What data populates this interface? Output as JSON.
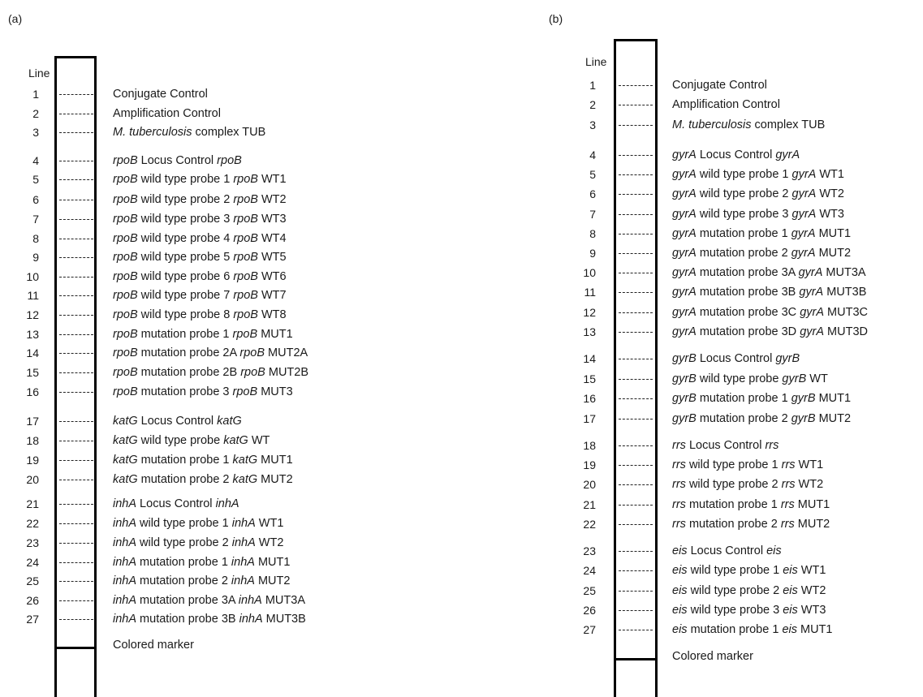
{
  "panels": [
    {
      "id": "a",
      "label": "(a)",
      "line_header": "Line",
      "marker_label": "Colored marker",
      "lines": [
        {
          "n": "1",
          "text": [
            [
              "Conjugate Control",
              0
            ]
          ]
        },
        {
          "n": "2",
          "text": [
            [
              "Amplification Control",
              0
            ]
          ]
        },
        {
          "n": "3",
          "text": [
            [
              "M. tuberculosis",
              1
            ],
            [
              " complex TUB",
              0
            ]
          ]
        },
        {
          "n": "4",
          "text": [
            [
              "rpoB",
              1
            ],
            [
              " Locus Control ",
              0
            ],
            [
              "rpoB",
              1
            ]
          ]
        },
        {
          "n": "5",
          "text": [
            [
              "rpoB",
              1
            ],
            [
              " wild type probe 1 ",
              0
            ],
            [
              "rpoB",
              1
            ],
            [
              " WT1",
              0
            ]
          ]
        },
        {
          "n": "6",
          "text": [
            [
              "rpoB",
              1
            ],
            [
              " wild type probe 2 ",
              0
            ],
            [
              "rpoB",
              1
            ],
            [
              " WT2",
              0
            ]
          ]
        },
        {
          "n": "7",
          "text": [
            [
              "rpoB",
              1
            ],
            [
              " wild type probe 3 ",
              0
            ],
            [
              "rpoB",
              1
            ],
            [
              " WT3",
              0
            ]
          ]
        },
        {
          "n": "8",
          "text": [
            [
              "rpoB",
              1
            ],
            [
              " wild type probe 4 ",
              0
            ],
            [
              "rpoB",
              1
            ],
            [
              " WT4",
              0
            ]
          ]
        },
        {
          "n": "9",
          "text": [
            [
              "rpoB",
              1
            ],
            [
              " wild type probe 5 ",
              0
            ],
            [
              "rpoB",
              1
            ],
            [
              " WT5",
              0
            ]
          ]
        },
        {
          "n": "10",
          "text": [
            [
              "rpoB",
              1
            ],
            [
              " wild type probe 6 ",
              0
            ],
            [
              "rpoB",
              1
            ],
            [
              " WT6",
              0
            ]
          ]
        },
        {
          "n": "11",
          "text": [
            [
              "rpoB",
              1
            ],
            [
              " wild type probe 7 ",
              0
            ],
            [
              "rpoB",
              1
            ],
            [
              " WT7",
              0
            ]
          ]
        },
        {
          "n": "12",
          "text": [
            [
              "rpoB",
              1
            ],
            [
              " wild type probe 8 ",
              0
            ],
            [
              "rpoB",
              1
            ],
            [
              " WT8",
              0
            ]
          ]
        },
        {
          "n": "13",
          "text": [
            [
              "rpoB",
              1
            ],
            [
              " mutation probe 1 ",
              0
            ],
            [
              "rpoB",
              1
            ],
            [
              " MUT1",
              0
            ]
          ]
        },
        {
          "n": "14",
          "text": [
            [
              "rpoB",
              1
            ],
            [
              " mutation probe 2A ",
              0
            ],
            [
              "rpoB",
              1
            ],
            [
              " MUT2A",
              0
            ]
          ]
        },
        {
          "n": "15",
          "text": [
            [
              "rpoB",
              1
            ],
            [
              " mutation probe 2B ",
              0
            ],
            [
              "rpoB",
              1
            ],
            [
              " MUT2B",
              0
            ]
          ]
        },
        {
          "n": "16",
          "text": [
            [
              "rpoB",
              1
            ],
            [
              " mutation probe 3 ",
              0
            ],
            [
              "rpoB",
              1
            ],
            [
              " MUT3",
              0
            ]
          ]
        },
        {
          "n": "17",
          "text": [
            [
              "katG",
              1
            ],
            [
              " Locus Control ",
              0
            ],
            [
              "katG",
              1
            ]
          ]
        },
        {
          "n": "18",
          "text": [
            [
              "katG",
              1
            ],
            [
              " wild type probe ",
              0
            ],
            [
              "katG",
              1
            ],
            [
              " WT",
              0
            ]
          ]
        },
        {
          "n": "19",
          "text": [
            [
              "katG",
              1
            ],
            [
              " mutation probe 1 ",
              0
            ],
            [
              "katG",
              1
            ],
            [
              " MUT1",
              0
            ]
          ]
        },
        {
          "n": "20",
          "text": [
            [
              "katG",
              1
            ],
            [
              " mutation probe 2 ",
              0
            ],
            [
              "katG",
              1
            ],
            [
              " MUT2",
              0
            ]
          ]
        },
        {
          "n": "21",
          "text": [
            [
              "inhA",
              1
            ],
            [
              " Locus Control ",
              0
            ],
            [
              "inhA",
              1
            ]
          ]
        },
        {
          "n": "22",
          "text": [
            [
              "inhA",
              1
            ],
            [
              " wild type probe 1 ",
              0
            ],
            [
              "inhA",
              1
            ],
            [
              " WT1",
              0
            ]
          ]
        },
        {
          "n": "23",
          "text": [
            [
              "inhA",
              1
            ],
            [
              " wild type probe 2 ",
              0
            ],
            [
              "inhA",
              1
            ],
            [
              " WT2",
              0
            ]
          ]
        },
        {
          "n": "24",
          "text": [
            [
              "inhA",
              1
            ],
            [
              " mutation probe 1 ",
              0
            ],
            [
              "inhA",
              1
            ],
            [
              " MUT1",
              0
            ]
          ]
        },
        {
          "n": "25",
          "text": [
            [
              "inhA",
              1
            ],
            [
              " mutation probe 2 ",
              0
            ],
            [
              "inhA",
              1
            ],
            [
              " MUT2",
              0
            ]
          ]
        },
        {
          "n": "26",
          "text": [
            [
              "inhA",
              1
            ],
            [
              " mutation probe 3A ",
              0
            ],
            [
              "inhA",
              1
            ],
            [
              " MUT3A",
              0
            ]
          ]
        },
        {
          "n": "27",
          "text": [
            [
              "inhA",
              1
            ],
            [
              " mutation probe 3B ",
              0
            ],
            [
              "inhA",
              1
            ],
            [
              " MUT3B",
              0
            ]
          ]
        }
      ]
    },
    {
      "id": "b",
      "label": "(b)",
      "line_header": "Line",
      "marker_label": "Colored marker",
      "lines": [
        {
          "n": "1",
          "text": [
            [
              "Conjugate Control",
              0
            ]
          ]
        },
        {
          "n": "2",
          "text": [
            [
              "Amplification Control",
              0
            ]
          ]
        },
        {
          "n": "3",
          "text": [
            [
              "M. tuberculosis",
              1
            ],
            [
              " complex TUB",
              0
            ]
          ]
        },
        {
          "n": "4",
          "text": [
            [
              "gyrA",
              1
            ],
            [
              " Locus Control ",
              0
            ],
            [
              "gyrA",
              1
            ]
          ]
        },
        {
          "n": "5",
          "text": [
            [
              "gyrA",
              1
            ],
            [
              " wild type probe 1 ",
              0
            ],
            [
              "gyrA",
              1
            ],
            [
              " WT1",
              0
            ]
          ]
        },
        {
          "n": "6",
          "text": [
            [
              "gyrA",
              1
            ],
            [
              " wild type probe 2 ",
              0
            ],
            [
              "gyrA",
              1
            ],
            [
              " WT2",
              0
            ]
          ]
        },
        {
          "n": "7",
          "text": [
            [
              "gyrA",
              1
            ],
            [
              " wild type probe 3 ",
              0
            ],
            [
              "gyrA",
              1
            ],
            [
              " WT3",
              0
            ]
          ]
        },
        {
          "n": "8",
          "text": [
            [
              "gyrA",
              1
            ],
            [
              " mutation probe 1 ",
              0
            ],
            [
              "gyrA",
              1
            ],
            [
              " MUT1",
              0
            ]
          ]
        },
        {
          "n": "9",
          "text": [
            [
              "gyrA",
              1
            ],
            [
              " mutation probe 2 ",
              0
            ],
            [
              "gyrA",
              1
            ],
            [
              " MUT2",
              0
            ]
          ]
        },
        {
          "n": "10",
          "text": [
            [
              "gyrA",
              1
            ],
            [
              " mutation probe 3A ",
              0
            ],
            [
              "gyrA",
              1
            ],
            [
              " MUT3A",
              0
            ]
          ]
        },
        {
          "n": "11",
          "text": [
            [
              "gyrA",
              1
            ],
            [
              " mutation probe 3B ",
              0
            ],
            [
              "gyrA",
              1
            ],
            [
              " MUT3B",
              0
            ]
          ]
        },
        {
          "n": "12",
          "text": [
            [
              "gyrA",
              1
            ],
            [
              " mutation probe 3C ",
              0
            ],
            [
              "gyrA",
              1
            ],
            [
              " MUT3C",
              0
            ]
          ]
        },
        {
          "n": "13",
          "text": [
            [
              "gyrA",
              1
            ],
            [
              " mutation probe 3D ",
              0
            ],
            [
              "gyrA",
              1
            ],
            [
              " MUT3D",
              0
            ]
          ]
        },
        {
          "n": "14",
          "text": [
            [
              "gyrB",
              1
            ],
            [
              " Locus Control ",
              0
            ],
            [
              "gyrB",
              1
            ]
          ]
        },
        {
          "n": "15",
          "text": [
            [
              "gyrB",
              1
            ],
            [
              " wild type probe ",
              0
            ],
            [
              "gyrB",
              1
            ],
            [
              " WT",
              0
            ]
          ]
        },
        {
          "n": "16",
          "text": [
            [
              "gyrB",
              1
            ],
            [
              " mutation probe 1 ",
              0
            ],
            [
              "gyrB",
              1
            ],
            [
              " MUT1",
              0
            ]
          ]
        },
        {
          "n": "17",
          "text": [
            [
              "gyrB",
              1
            ],
            [
              " mutation probe 2 ",
              0
            ],
            [
              "gyrB",
              1
            ],
            [
              " MUT2",
              0
            ]
          ]
        },
        {
          "n": "18",
          "text": [
            [
              "rrs",
              1
            ],
            [
              " Locus Control ",
              0
            ],
            [
              "rrs",
              1
            ]
          ]
        },
        {
          "n": "19",
          "text": [
            [
              "rrs",
              1
            ],
            [
              " wild type probe 1 ",
              0
            ],
            [
              "rrs",
              1
            ],
            [
              " WT1",
              0
            ]
          ]
        },
        {
          "n": "20",
          "text": [
            [
              "rrs",
              1
            ],
            [
              " wild type probe 2 ",
              0
            ],
            [
              "rrs",
              1
            ],
            [
              " WT2",
              0
            ]
          ]
        },
        {
          "n": "21",
          "text": [
            [
              "rrs",
              1
            ],
            [
              " mutation probe 1 ",
              0
            ],
            [
              "rrs",
              1
            ],
            [
              " MUT1",
              0
            ]
          ]
        },
        {
          "n": "22",
          "text": [
            [
              "rrs",
              1
            ],
            [
              " mutation probe 2 ",
              0
            ],
            [
              "rrs",
              1
            ],
            [
              " MUT2",
              0
            ]
          ]
        },
        {
          "n": "23",
          "text": [
            [
              "eis",
              1
            ],
            [
              " Locus Control ",
              0
            ],
            [
              "eis",
              1
            ]
          ]
        },
        {
          "n": "24",
          "text": [
            [
              "eis",
              1
            ],
            [
              " wild type probe 1 ",
              0
            ],
            [
              "eis",
              1
            ],
            [
              " WT1",
              0
            ]
          ]
        },
        {
          "n": "25",
          "text": [
            [
              "eis",
              1
            ],
            [
              " wild type probe 2 ",
              0
            ],
            [
              "eis",
              1
            ],
            [
              " WT2",
              0
            ]
          ]
        },
        {
          "n": "26",
          "text": [
            [
              "eis",
              1
            ],
            [
              " wild type probe 3 ",
              0
            ],
            [
              "eis",
              1
            ],
            [
              " WT3",
              0
            ]
          ]
        },
        {
          "n": "27",
          "text": [
            [
              "eis",
              1
            ],
            [
              " mutation probe 1 ",
              0
            ],
            [
              "eis",
              1
            ],
            [
              " MUT1",
              0
            ]
          ]
        }
      ]
    }
  ]
}
